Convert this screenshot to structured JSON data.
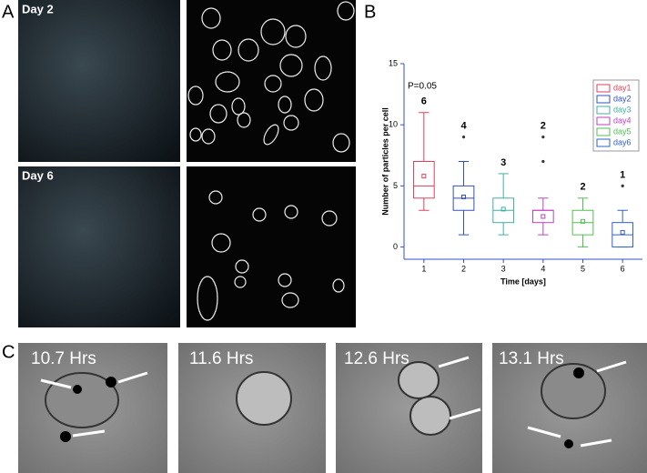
{
  "panels": {
    "a": {
      "label": "A",
      "rows": [
        "Day 2",
        "Day 6"
      ]
    },
    "b": {
      "label": "B"
    },
    "c": {
      "label": "C",
      "frames": [
        "10.7 Hrs",
        "11.6 Hrs",
        "12.6 Hrs",
        "13.1 Hrs"
      ]
    }
  },
  "chart_data": {
    "type": "box",
    "x_label": "Time [days]",
    "y_label": "Number of particles per cell",
    "annotation": "P=0.05",
    "categories": [
      "1",
      "2",
      "3",
      "4",
      "5",
      "6"
    ],
    "top_labels": [
      "6",
      "4",
      "3",
      "2",
      "2",
      "1"
    ],
    "ylim": [
      -1,
      15
    ],
    "yticks": [
      0,
      5,
      10,
      15
    ],
    "grid": false,
    "legend": "upper right",
    "series": [
      {
        "name": "day1",
        "color": "#e0405a",
        "min": 3,
        "q1": 4,
        "median": 5,
        "q3": 7,
        "max": 11,
        "mean": 5.8,
        "outliers": []
      },
      {
        "name": "day2",
        "color": "#3050c8",
        "min": 1,
        "q1": 3,
        "median": 4,
        "q3": 5,
        "max": 7,
        "mean": 4.1,
        "outliers": [
          9
        ]
      },
      {
        "name": "day3",
        "color": "#40b0a0",
        "min": 1,
        "q1": 2,
        "median": 3,
        "q3": 4,
        "max": 6,
        "mean": 3.1,
        "outliers": []
      },
      {
        "name": "day4",
        "color": "#c040c0",
        "min": 1,
        "q1": 2,
        "median": 3,
        "q3": 3,
        "max": 4,
        "mean": 2.5,
        "outliers": [
          7,
          9
        ]
      },
      {
        "name": "day5",
        "color": "#50c050",
        "min": 0,
        "q1": 1,
        "median": 2,
        "q3": 3,
        "max": 4,
        "mean": 2.1,
        "outliers": []
      },
      {
        "name": "day6",
        "color": "#3060d0",
        "min": 0,
        "q1": 0,
        "median": 1,
        "q3": 2,
        "max": 3,
        "mean": 1.2,
        "outliers": [
          5
        ]
      }
    ]
  }
}
